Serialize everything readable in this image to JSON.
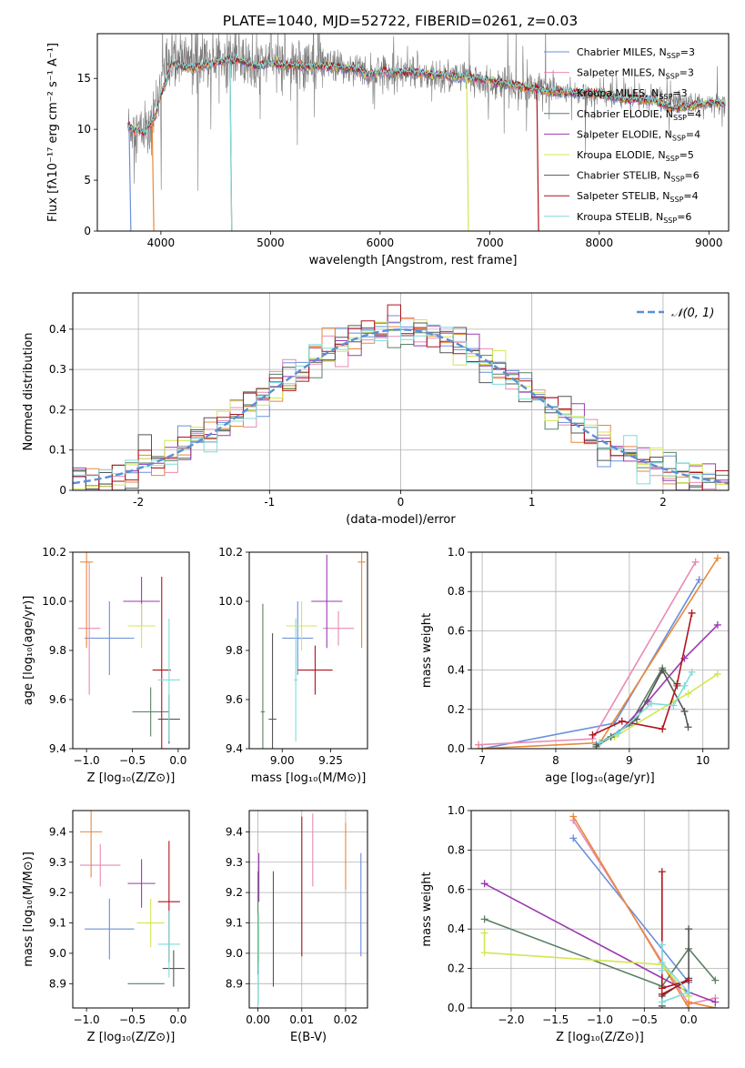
{
  "title": "PLATE=1040, MJD=52722, FIBERID=0261, z=0.03",
  "colors": {
    "series": [
      "#6a8fdb",
      "#e98ab4",
      "#e8893a",
      "#5b8063",
      "#9b3ab0",
      "#d4e651",
      "#555555",
      "#b0141c",
      "#7fdcdc"
    ],
    "data": "#7a7a7a",
    "gauss": "#5b8fd6",
    "grid": "#b0b0b0"
  },
  "legend": [
    {
      "prefix": "Chabrier MILES, N",
      "sub": "SSP",
      "suffix": "=3"
    },
    {
      "prefix": "Salpeter MILES, N",
      "sub": "SSP",
      "suffix": "=3"
    },
    {
      "prefix": "Kroupa MILES, N",
      "sub": "SSP",
      "suffix": "=3"
    },
    {
      "prefix": "Chabrier ELODIE, N",
      "sub": "SSP",
      "suffix": "=4"
    },
    {
      "prefix": "Salpeter ELODIE, N",
      "sub": "SSP",
      "suffix": "=4"
    },
    {
      "prefix": "Kroupa ELODIE, N",
      "sub": "SSP",
      "suffix": "=5"
    },
    {
      "prefix": "Chabrier STELIB, N",
      "sub": "SSP",
      "suffix": "=6"
    },
    {
      "prefix": "Salpeter STELIB, N",
      "sub": "SSP",
      "suffix": "=4"
    },
    {
      "prefix": "Kroupa STELIB, N",
      "sub": "SSP",
      "suffix": "=6"
    }
  ],
  "chart_data": [
    {
      "type": "line",
      "id": "spectrum",
      "xlabel": "wavelength [Angstrom, rest frame]",
      "ylabel": "Flux [fλ10⁻¹⁷ erg cm⁻² s⁻¹ A⁻¹]",
      "xlim": [
        3420,
        9180
      ],
      "ylim": [
        0,
        19.4
      ],
      "xticks": [
        4000,
        5000,
        6000,
        7000,
        8000,
        9000
      ],
      "yticks": [
        0,
        5,
        10,
        15
      ],
      "data_anchors": [
        [
          3700,
          10.3
        ],
        [
          3900,
          9.5
        ],
        [
          3950,
          12.5
        ],
        [
          4000,
          14.2
        ],
        [
          4100,
          17.2
        ],
        [
          4300,
          16.4
        ],
        [
          4500,
          16.8
        ],
        [
          4700,
          16.9
        ],
        [
          4862,
          16.0
        ],
        [
          5000,
          16.7
        ],
        [
          5175,
          16.4
        ],
        [
          5500,
          16.2
        ],
        [
          5800,
          16.0
        ],
        [
          5890,
          15.3
        ],
        [
          6000,
          15.7
        ],
        [
          6300,
          15.6
        ],
        [
          6563,
          15.3
        ],
        [
          6800,
          15.1
        ],
        [
          7000,
          14.6
        ],
        [
          7300,
          14.2
        ],
        [
          7600,
          13.8
        ],
        [
          8000,
          13.4
        ],
        [
          8500,
          13.0
        ],
        [
          9000,
          12.5
        ],
        [
          9150,
          12.4
        ]
      ],
      "model_anchors": [
        [
          3700,
          10.2
        ],
        [
          3850,
          9.6
        ],
        [
          3950,
          11.2
        ],
        [
          4000,
          13.5
        ],
        [
          4050,
          14.6
        ],
        [
          4100,
          16.5
        ],
        [
          4200,
          16.1
        ],
        [
          4300,
          16.0
        ],
        [
          4500,
          16.6
        ],
        [
          4700,
          16.8
        ],
        [
          4862,
          16.2
        ],
        [
          5000,
          16.5
        ],
        [
          5175,
          16.2
        ],
        [
          5500,
          16.2
        ],
        [
          5800,
          15.9
        ],
        [
          5890,
          15.4
        ],
        [
          6000,
          15.6
        ],
        [
          6300,
          15.6
        ],
        [
          6563,
          15.3
        ],
        [
          6800,
          15.1
        ],
        [
          7000,
          14.8
        ],
        [
          7200,
          14.3
        ],
        [
          7400,
          14.0
        ],
        [
          7600,
          13.6
        ],
        [
          8000,
          13.5
        ],
        [
          8200,
          13.0
        ],
        [
          8500,
          12.8
        ],
        [
          8600,
          12.3
        ],
        [
          8700,
          12.0
        ],
        [
          9000,
          12.6
        ],
        [
          9150,
          12.5
        ]
      ],
      "dropouts": [
        [
          3710,
          0
        ],
        [
          3920,
          2
        ],
        [
          4630,
          6
        ],
        [
          6790,
          5
        ],
        [
          7430,
          7
        ],
        [
          4630,
          8
        ]
      ]
    },
    {
      "type": "histogram",
      "id": "residuals",
      "xlabel": "(data-model)/error",
      "ylabel": "Normed distribution",
      "xlim": [
        -2.5,
        2.5
      ],
      "ylim": [
        0,
        0.49
      ],
      "xticks": [
        -2,
        -1,
        0,
        1,
        2
      ],
      "yticks": [
        0,
        0.1,
        0.2,
        0.3,
        0.4
      ],
      "bin_width": 0.1,
      "gauss_label": "𝒩(0, 1)"
    },
    {
      "type": "scatter-errorbar",
      "id": "age-vs-Z",
      "xlabel": "Z [log₁₀(Z/Z⊙)]",
      "ylabel": "age  [log₁₀(age/yr)]",
      "xlim": [
        -1.15,
        0.12
      ],
      "ylim": [
        9.4,
        10.2
      ],
      "xticks": [
        -1.0,
        -0.5,
        0.0
      ],
      "xticklabels": [
        "−1.0",
        "−0.5",
        "0.0"
      ],
      "yticks": [
        9.4,
        9.6,
        9.8,
        10.0,
        10.2
      ],
      "yticklabels": [
        "9.4",
        "9.6",
        "9.8",
        "10.0",
        "10.2"
      ],
      "points": [
        {
          "x": -0.75,
          "y": 9.85,
          "xerr": 0.27,
          "yerr": 0.15
        },
        {
          "x": -0.97,
          "y": 9.89,
          "xerr": 0.12,
          "yerr": 0.27
        },
        {
          "x": -1.0,
          "y": 10.16,
          "xerr": 0.07,
          "yerr": 0.35
        },
        {
          "x": -0.3,
          "y": 9.55,
          "xerr": 0.2,
          "yerr": 0.1
        },
        {
          "x": -0.4,
          "y": 10.0,
          "xerr": 0.2,
          "yerr": 0.1
        },
        {
          "x": -0.4,
          "y": 9.9,
          "xerr": 0.15,
          "yerr": 0.09
        },
        {
          "x": -0.1,
          "y": 9.52,
          "xerr": 0.12,
          "yerr": 0.1
        },
        {
          "x": -0.18,
          "y": 9.72,
          "xerr": 0.1,
          "yerr": 0.38
        },
        {
          "x": -0.1,
          "y": 9.68,
          "xerr": 0.12,
          "yerr": 0.25
        }
      ]
    },
    {
      "type": "scatter-errorbar",
      "id": "age-vs-mass",
      "xlabel": "mass [log₁₀(M/M⊙)]",
      "ylabel": "",
      "xlim": [
        8.83,
        9.44
      ],
      "ylim": [
        9.4,
        10.2
      ],
      "xticks": [
        9.0,
        9.25
      ],
      "xticklabels": [
        "9.00",
        "9.25"
      ],
      "yticks": [
        9.4,
        9.6,
        9.8,
        10.0,
        10.2
      ],
      "yticklabels": [
        "9.4",
        "9.6",
        "9.8",
        "10.0",
        "10.2"
      ],
      "points": [
        {
          "x": 9.08,
          "y": 9.85,
          "xerr": 0.08,
          "yerr": 0.15
        },
        {
          "x": 9.29,
          "y": 9.89,
          "xerr": 0.08,
          "yerr": 0.07
        },
        {
          "x": 9.41,
          "y": 10.16,
          "xerr": 0.02,
          "yerr": 0.35
        },
        {
          "x": 8.9,
          "y": 9.55,
          "xerr": 0.01,
          "yerr": 0.44
        },
        {
          "x": 9.23,
          "y": 10.0,
          "xerr": 0.08,
          "yerr": 0.19
        },
        {
          "x": 9.1,
          "y": 9.9,
          "xerr": 0.08,
          "yerr": 0.1
        },
        {
          "x": 8.95,
          "y": 9.52,
          "xerr": 0.02,
          "yerr": 0.35
        },
        {
          "x": 9.17,
          "y": 9.72,
          "xerr": 0.09,
          "yerr": 0.1
        },
        {
          "x": 9.07,
          "y": 9.68,
          "xerr": 0.01,
          "yerr": 0.25
        }
      ]
    },
    {
      "type": "line",
      "id": "mass-weight-vs-age",
      "xlabel": "age  [log₁₀(age/yr)]",
      "ylabel": "mass weight",
      "xlim": [
        6.85,
        10.35
      ],
      "ylim": [
        0,
        1
      ],
      "xticks": [
        7,
        8,
        9,
        10
      ],
      "xticklabels": [
        "7",
        "8",
        "9",
        "10"
      ],
      "yticks": [
        0,
        0.2,
        0.4,
        0.6,
        0.8,
        1.0
      ],
      "yticklabels": [
        "0.0",
        "0.2",
        "0.4",
        "0.6",
        "0.8",
        "1.0"
      ],
      "series": [
        {
          "x": [
            7.0,
            8.8,
            9.95
          ],
          "y": [
            0.0,
            0.13,
            0.86
          ]
        },
        {
          "x": [
            6.95,
            8.5,
            9.9
          ],
          "y": [
            0.02,
            0.05,
            0.95
          ]
        },
        {
          "x": [
            6.95,
            8.6,
            10.2
          ],
          "y": [
            0.0,
            0.03,
            0.97
          ]
        },
        {
          "x": [
            8.55,
            9.0,
            9.45,
            9.65
          ],
          "y": [
            0.02,
            0.12,
            0.41,
            0.32
          ]
        },
        {
          "x": [
            8.6,
            8.85,
            9.25,
            9.75,
            10.2
          ],
          "y": [
            0.03,
            0.08,
            0.24,
            0.46,
            0.63
          ]
        },
        {
          "x": [
            8.6,
            8.8,
            9.6,
            9.8,
            10.2
          ],
          "y": [
            0.03,
            0.06,
            0.24,
            0.28,
            0.38
          ]
        },
        {
          "x": [
            8.55,
            8.75,
            9.1,
            9.45,
            9.75,
            9.8
          ],
          "y": [
            0.01,
            0.06,
            0.15,
            0.4,
            0.19,
            0.11
          ]
        },
        {
          "x": [
            8.5,
            8.9,
            9.45,
            9.65,
            9.85
          ],
          "y": [
            0.07,
            0.14,
            0.1,
            0.33,
            0.69
          ]
        },
        {
          "x": [
            8.6,
            8.85,
            9.3,
            9.6,
            9.75,
            9.85
          ],
          "y": [
            0.03,
            0.08,
            0.23,
            0.22,
            0.32,
            0.39
          ]
        }
      ]
    },
    {
      "type": "scatter-errorbar",
      "id": "mass-vs-Z",
      "xlabel": "Z [log₁₀(Z/Z⊙)]",
      "ylabel": "mass [log₁₀(M/M⊙)]",
      "xlim": [
        -1.15,
        0.12
      ],
      "ylim": [
        8.82,
        9.47
      ],
      "xticks": [
        -1.0,
        -0.5,
        0.0
      ],
      "xticklabels": [
        "−1.0",
        "−0.5",
        "0.0"
      ],
      "yticks": [
        8.9,
        9.0,
        9.1,
        9.2,
        9.3,
        9.4
      ],
      "yticklabels": [
        "8.9",
        "9.0",
        "9.1",
        "9.2",
        "9.3",
        "9.4"
      ],
      "points": [
        {
          "x": -0.75,
          "y": 9.08,
          "xerr": 0.27,
          "yerr": 0.1
        },
        {
          "x": -0.85,
          "y": 9.29,
          "xerr": 0.22,
          "yerr": 0.07
        },
        {
          "x": -0.95,
          "y": 9.4,
          "xerr": 0.12,
          "yerr": 0.15
        },
        {
          "x": -0.35,
          "y": 8.9,
          "xerr": 0.2,
          "yerr": 0.0
        },
        {
          "x": -0.4,
          "y": 9.23,
          "xerr": 0.15,
          "yerr": 0.08
        },
        {
          "x": -0.3,
          "y": 9.1,
          "xerr": 0.15,
          "yerr": 0.08
        },
        {
          "x": -0.05,
          "y": 8.95,
          "xerr": 0.12,
          "yerr": 0.06
        },
        {
          "x": -0.1,
          "y": 9.17,
          "xerr": 0.12,
          "yerr": 0.2
        },
        {
          "x": -0.1,
          "y": 9.03,
          "xerr": 0.12,
          "yerr": 0.11
        }
      ]
    },
    {
      "type": "scatter-errorbar",
      "id": "mass-vs-EBV",
      "xlabel": "E(B-V)",
      "ylabel": "",
      "xlim": [
        -0.002,
        0.025
      ],
      "ylim": [
        8.82,
        9.47
      ],
      "xticks": [
        0.0,
        0.01,
        0.02
      ],
      "xticklabels": [
        "0.00",
        "0.01",
        "0.02"
      ],
      "yticks": [
        8.9,
        9.0,
        9.1,
        9.2,
        9.3,
        9.4
      ],
      "yticklabels": [
        "8.9",
        "9.0",
        "9.1",
        "9.2",
        "9.3",
        "9.4"
      ],
      "points": [
        {
          "x": 0.0235,
          "y": 9.16,
          "xerr": 0,
          "yerr": 0.17
        },
        {
          "x": 0.0125,
          "y": 9.34,
          "xerr": 0,
          "yerr": 0.12
        },
        {
          "x": 0.02,
          "y": 9.32,
          "xerr": 0,
          "yerr": 0.11
        },
        {
          "x": 0.0,
          "y": 9.1,
          "xerr": 0,
          "yerr": 0.17
        },
        {
          "x": 0.0002,
          "y": 9.25,
          "xerr": 0,
          "yerr": 0.08
        },
        {
          "x": 0.0002,
          "y": 9.05,
          "xerr": 0,
          "yerr": 0.08
        },
        {
          "x": 0.0035,
          "y": 9.08,
          "xerr": 0,
          "yerr": 0.19
        },
        {
          "x": 0.01,
          "y": 9.22,
          "xerr": 0,
          "yerr": 0.23
        },
        {
          "x": 0.0001,
          "y": 8.98,
          "xerr": 0,
          "yerr": 0.15
        }
      ]
    },
    {
      "type": "line",
      "id": "mass-weight-vs-Z",
      "xlabel": "Z [log₁₀(Z/Z⊙)]",
      "ylabel": "mass weight",
      "xlim": [
        -2.45,
        0.45
      ],
      "ylim": [
        0,
        1
      ],
      "xticks": [
        -2.0,
        -1.5,
        -1.0,
        -0.5,
        0.0
      ],
      "xticklabels": [
        "−2.0",
        "−1.5",
        "−1.0",
        "−0.5",
        "0.0"
      ],
      "yticks": [
        0,
        0.2,
        0.4,
        0.6,
        0.8,
        1.0
      ],
      "yticklabels": [
        "0.0",
        "0.2",
        "0.4",
        "0.6",
        "0.8",
        "1.0"
      ],
      "series": [
        {
          "x": [
            -1.3,
            0.0,
            0.0
          ],
          "y": [
            0.86,
            0.13,
            0.06
          ]
        },
        {
          "x": [
            -1.3,
            0.0,
            0.3
          ],
          "y": [
            0.95,
            0.02,
            0.05
          ]
        },
        {
          "x": [
            -1.3,
            0.0,
            0.0,
            0.3
          ],
          "y": [
            0.97,
            0.0,
            0.03,
            0.0
          ]
        },
        {
          "x": [
            -2.3,
            -0.3,
            0.0,
            0.3
          ],
          "y": [
            0.45,
            0.11,
            0.3,
            0.14
          ]
        },
        {
          "x": [
            -2.3,
            0.0,
            0.3
          ],
          "y": [
            0.63,
            0.08,
            0.03
          ]
        },
        {
          "x": [
            -2.3,
            -2.3,
            -0.3,
            0.0
          ],
          "y": [
            0.38,
            0.28,
            0.22,
            0.06
          ]
        },
        {
          "x": [
            -0.3,
            -0.3,
            0.0,
            0.0
          ],
          "y": [
            0.01,
            0.06,
            0.15,
            0.4
          ]
        },
        {
          "x": [
            -0.3,
            0.0,
            -0.3,
            -0.3
          ],
          "y": [
            0.07,
            0.14,
            0.1,
            0.69
          ]
        },
        {
          "x": [
            -0.3,
            0.0,
            -0.3,
            -0.3,
            -0.3
          ],
          "y": [
            0.03,
            0.08,
            0.23,
            0.32,
            0.19
          ]
        }
      ]
    }
  ]
}
